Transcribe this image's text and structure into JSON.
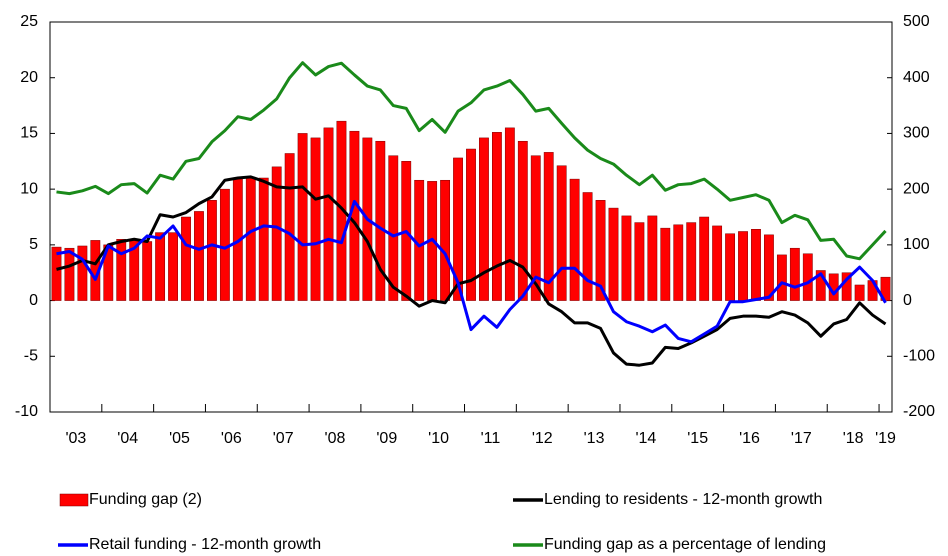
{
  "chart_data": {
    "type": "bar",
    "categories": [
      "'03",
      null,
      null,
      null,
      "'04",
      null,
      null,
      null,
      "'05",
      null,
      null,
      null,
      "'06",
      null,
      null,
      null,
      "'07",
      null,
      null,
      null,
      "'08",
      null,
      null,
      null,
      "'09",
      null,
      null,
      null,
      "'10",
      null,
      null,
      null,
      "'11",
      null,
      null,
      null,
      "'12",
      null,
      null,
      null,
      "'13",
      null,
      null,
      null,
      "'14",
      null,
      null,
      null,
      "'15",
      null,
      null,
      null,
      "'16",
      null,
      null,
      null,
      "'17",
      null,
      null,
      null,
      "'18",
      null,
      null,
      null,
      "'19"
    ],
    "ylim": [
      -10,
      25
    ],
    "yticks": [
      -10,
      -5,
      0,
      5,
      10,
      15,
      20,
      25
    ],
    "y2lim": [
      -200,
      500
    ],
    "y2ticks": [
      -200,
      -100,
      0,
      100,
      200,
      300,
      400,
      500
    ],
    "series": [
      {
        "name": "Funding gap (2)",
        "type": "bar",
        "color": "#ff0000",
        "values": [
          4.8,
          4.7,
          4.9,
          5.4,
          5.0,
          5.5,
          5.5,
          5.3,
          6.1,
          6.1,
          7.5,
          8.0,
          9.0,
          10.0,
          11.0,
          11.0,
          11.0,
          12.0,
          13.2,
          15.0,
          14.6,
          15.5,
          16.1,
          15.2,
          14.6,
          14.3,
          13.0,
          12.5,
          10.8,
          10.7,
          10.8,
          12.8,
          13.6,
          14.6,
          15.1,
          15.5,
          14.3,
          13.0,
          13.3,
          12.1,
          10.9,
          9.7,
          9.0,
          8.3,
          7.6,
          7.0,
          7.6,
          6.5,
          6.8,
          7.0,
          7.5,
          6.7,
          6.0,
          6.2,
          6.4,
          5.9,
          4.1,
          4.7,
          4.2,
          2.7,
          2.4,
          2.5,
          1.4,
          1.8,
          2.1
        ]
      },
      {
        "name": "Lending to residents - 12-month growth",
        "type": "line",
        "color": "#000000",
        "values": [
          2.8,
          3.1,
          3.6,
          3.3,
          5.0,
          5.3,
          5.5,
          5.3,
          7.7,
          7.5,
          7.9,
          8.7,
          9.3,
          10.8,
          11.0,
          11.1,
          10.7,
          10.2,
          10.1,
          10.2,
          9.1,
          9.4,
          8.3,
          7.0,
          5.3,
          2.8,
          1.2,
          0.4,
          -0.5,
          0.0,
          -0.2,
          1.5,
          1.8,
          2.5,
          3.1,
          3.6,
          3.0,
          1.5,
          -0.3,
          -1.0,
          -2.0,
          -2.0,
          -2.5,
          -4.7,
          -5.7,
          -5.8,
          -5.6,
          -4.2,
          -4.3,
          -3.8,
          -3.2,
          -2.6,
          -1.6,
          -1.4,
          -1.4,
          -1.5,
          -1.0,
          -1.3,
          -2.0,
          -3.2,
          -2.1,
          -1.7,
          -0.2,
          -1.3,
          -2.1
        ]
      },
      {
        "name": "Retail funding - 12-month growth",
        "type": "line",
        "color": "#0000ff",
        "values": [
          4.2,
          4.4,
          3.7,
          1.9,
          4.9,
          4.2,
          4.7,
          5.8,
          5.6,
          6.7,
          5.0,
          4.6,
          5.0,
          4.7,
          5.3,
          6.2,
          6.7,
          6.6,
          6.0,
          5.0,
          5.1,
          5.5,
          5.2,
          8.9,
          7.3,
          6.5,
          5.8,
          6.2,
          4.9,
          5.5,
          4.2,
          1.6,
          -2.6,
          -1.4,
          -2.4,
          -0.8,
          0.4,
          2.1,
          1.6,
          2.9,
          2.9,
          1.8,
          1.3,
          -1.0,
          -1.9,
          -2.3,
          -2.8,
          -2.2,
          -3.4,
          -3.7,
          -3.0,
          -2.3,
          -0.1,
          -0.1,
          0.1,
          0.3,
          1.6,
          1.2,
          1.6,
          2.4,
          0.6,
          1.9,
          3.0,
          1.8,
          -0.2
        ]
      },
      {
        "name": "Funding gap as a percentage of lending",
        "type": "line",
        "color": "#1a8a1a",
        "axis": "y2",
        "values": [
          195,
          192,
          197,
          205,
          192,
          208,
          210,
          193,
          225,
          218,
          250,
          255,
          285,
          305,
          330,
          325,
          342,
          362,
          400,
          427,
          405,
          420,
          426,
          405,
          385,
          378,
          350,
          345,
          305,
          325,
          302,
          340,
          355,
          378,
          385,
          395,
          370,
          340,
          345,
          318,
          292,
          270,
          255,
          245,
          225,
          208,
          225,
          198,
          208,
          210,
          218,
          200,
          180,
          185,
          190,
          180,
          140,
          153,
          145,
          108,
          110,
          80,
          75,
          100,
          125
        ]
      }
    ]
  }
}
